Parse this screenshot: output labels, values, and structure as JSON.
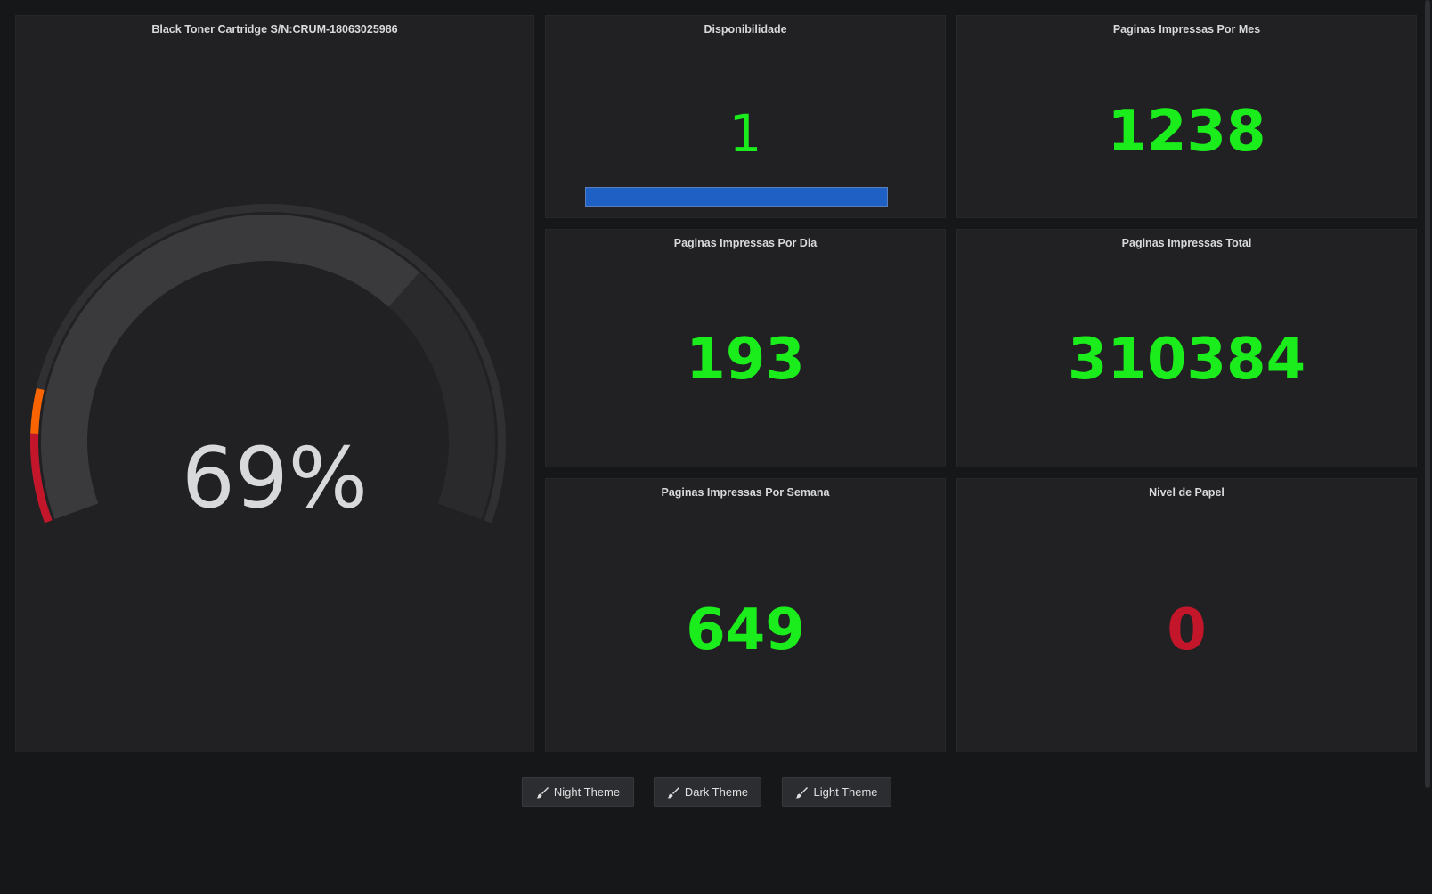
{
  "colors": {
    "ok": "#1bec1b",
    "critical": "#c4162a",
    "warning": "#fa6400",
    "bar": "#1f60c4"
  },
  "panels": {
    "toner": {
      "title": "Black Toner Cartridge S/N:CRUM-18063025986",
      "value": "69%",
      "gauge_fraction": 0.69,
      "thresholds": [
        {
          "from": 0,
          "to": 0.1,
          "color": "#c4162a"
        },
        {
          "from": 0.1,
          "to": 0.15,
          "color": "#fa6400"
        }
      ]
    },
    "disponibilidade": {
      "title": "Disponibilidade",
      "value": "1",
      "bar_fraction": 1.0
    },
    "por_mes": {
      "title": "Paginas Impressas Por Mes",
      "value": "1238"
    },
    "por_dia": {
      "title": "Paginas Impressas Por Dia",
      "value": "193"
    },
    "total": {
      "title": "Paginas Impressas Total",
      "value": "310384"
    },
    "por_semana": {
      "title": "Paginas Impressas Por Semana",
      "value": "649"
    },
    "papel": {
      "title": "Nivel de Papel",
      "value": "0"
    }
  },
  "theme_buttons": [
    {
      "label": "Night Theme",
      "icon": "brush-icon"
    },
    {
      "label": "Dark Theme",
      "icon": "brush-icon"
    },
    {
      "label": "Light Theme",
      "icon": "brush-icon"
    }
  ]
}
